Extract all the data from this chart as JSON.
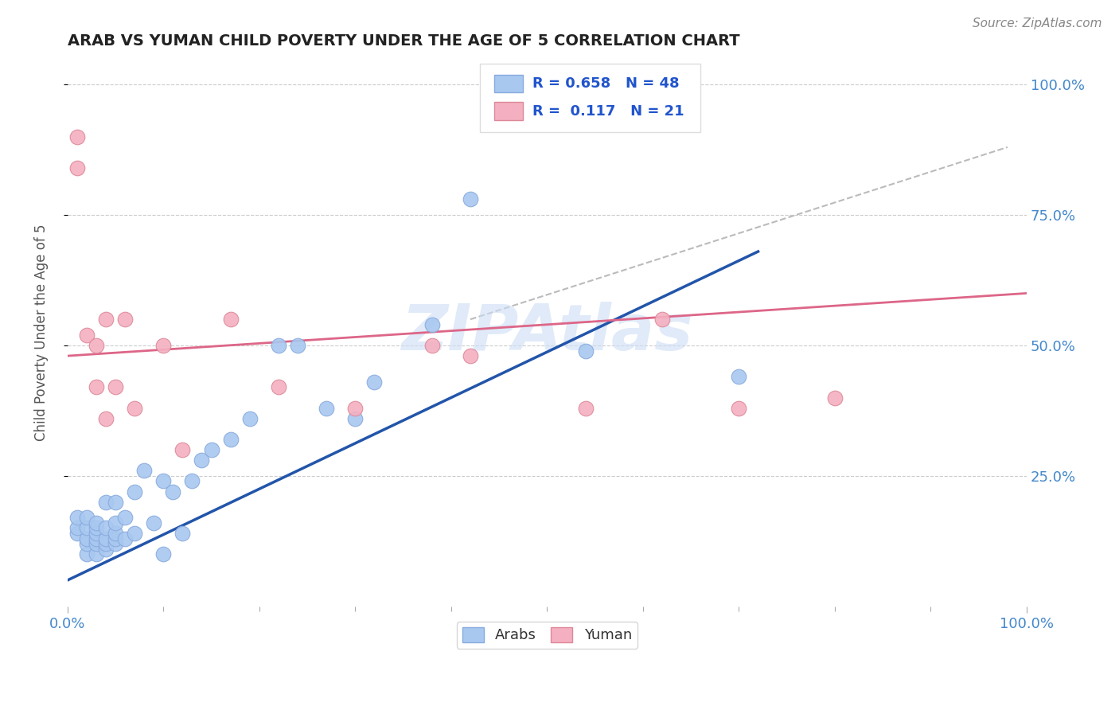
{
  "title": "ARAB VS YUMAN CHILD POVERTY UNDER THE AGE OF 5 CORRELATION CHART",
  "source_text": "Source: ZipAtlas.com",
  "ylabel": "Child Poverty Under the Age of 5",
  "xlim": [
    0.0,
    1.0
  ],
  "ylim": [
    0.0,
    1.05
  ],
  "ytick_labels": [
    "25.0%",
    "50.0%",
    "75.0%",
    "100.0%"
  ],
  "ytick_positions": [
    0.25,
    0.5,
    0.75,
    1.0
  ],
  "grid_color": "#cccccc",
  "background_color": "#ffffff",
  "arab_color": "#a8c8f0",
  "yuman_color": "#f4b0c0",
  "arab_edge_color": "#88aadd",
  "yuman_edge_color": "#dd8899",
  "arab_line_color": "#2255aa",
  "yuman_line_color": "#dd6688",
  "dashed_color": "#bbbbbb",
  "R_arab": 0.658,
  "N_arab": 48,
  "R_yuman": 0.117,
  "N_yuman": 21,
  "legend_text_color": "#2255cc",
  "watermark_text": "ZIPAtlas",
  "watermark_color": "#ccddf5",
  "arab_line_x0": 0.0,
  "arab_line_y0": 0.05,
  "arab_line_x1": 0.72,
  "arab_line_y1": 0.68,
  "yuman_line_x0": 0.0,
  "yuman_line_y0": 0.48,
  "yuman_line_x1": 1.0,
  "yuman_line_y1": 0.6,
  "dash_line_x0": 0.42,
  "dash_line_y0": 0.55,
  "dash_line_x1": 0.98,
  "dash_line_y1": 0.88,
  "arab_x": [
    0.01,
    0.01,
    0.01,
    0.02,
    0.02,
    0.02,
    0.02,
    0.02,
    0.03,
    0.03,
    0.03,
    0.03,
    0.03,
    0.03,
    0.04,
    0.04,
    0.04,
    0.04,
    0.04,
    0.05,
    0.05,
    0.05,
    0.05,
    0.05,
    0.06,
    0.06,
    0.07,
    0.07,
    0.08,
    0.09,
    0.1,
    0.1,
    0.11,
    0.12,
    0.13,
    0.14,
    0.15,
    0.17,
    0.19,
    0.22,
    0.24,
    0.27,
    0.3,
    0.32,
    0.38,
    0.42,
    0.54,
    0.7
  ],
  "arab_y": [
    0.14,
    0.15,
    0.17,
    0.1,
    0.12,
    0.13,
    0.15,
    0.17,
    0.1,
    0.12,
    0.13,
    0.14,
    0.15,
    0.16,
    0.11,
    0.12,
    0.13,
    0.15,
    0.2,
    0.12,
    0.13,
    0.14,
    0.16,
    0.2,
    0.13,
    0.17,
    0.14,
    0.22,
    0.26,
    0.16,
    0.1,
    0.24,
    0.22,
    0.14,
    0.24,
    0.28,
    0.3,
    0.32,
    0.36,
    0.5,
    0.5,
    0.38,
    0.36,
    0.43,
    0.54,
    0.78,
    0.49,
    0.44
  ],
  "yuman_x": [
    0.01,
    0.01,
    0.02,
    0.03,
    0.03,
    0.04,
    0.04,
    0.05,
    0.06,
    0.07,
    0.1,
    0.12,
    0.17,
    0.22,
    0.3,
    0.38,
    0.42,
    0.54,
    0.62,
    0.7,
    0.8
  ],
  "yuman_y": [
    0.84,
    0.9,
    0.52,
    0.42,
    0.5,
    0.36,
    0.55,
    0.42,
    0.55,
    0.38,
    0.5,
    0.3,
    0.55,
    0.42,
    0.38,
    0.5,
    0.48,
    0.38,
    0.55,
    0.38,
    0.4
  ]
}
